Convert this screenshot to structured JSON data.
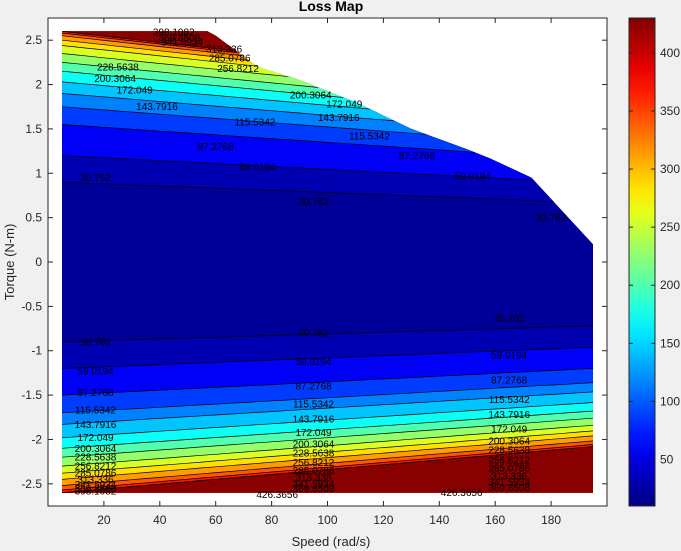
{
  "chart_data": {
    "type": "contourf",
    "title": "Loss Map",
    "xlabel": "Speed (rad/s)",
    "ylabel": "Torque (N-m)",
    "xlim": [
      0,
      200
    ],
    "ylim": [
      -2.75,
      2.75
    ],
    "x_ticks": [
      20,
      40,
      60,
      80,
      100,
      120,
      140,
      160,
      180
    ],
    "y_ticks": [
      -2.5,
      -2,
      -1.5,
      -1,
      -0.5,
      0,
      0.5,
      1,
      1.5,
      2,
      2.5
    ],
    "y_tick_labels": [
      "-2.5",
      "-2",
      "-1.5",
      "-1",
      "-0.5",
      "0",
      "0.5",
      "1",
      "1.5",
      "2",
      "2.5"
    ],
    "data_x_range": [
      5,
      195
    ],
    "data_y_range": [
      -2.6,
      2.6
    ],
    "max_torque_boundary": [
      [
        5,
        2.6
      ],
      [
        57,
        2.6
      ],
      [
        60,
        2.55
      ],
      [
        75,
        2.2
      ],
      [
        90,
        2.05
      ],
      [
        110,
        1.8
      ],
      [
        130,
        1.5
      ],
      [
        150,
        1.27
      ],
      [
        158,
        1.17
      ],
      [
        173,
        0.95
      ],
      [
        195,
        0.2
      ]
    ],
    "contour_levels": [
      30.762,
      59.0194,
      87.2768,
      115.5342,
      143.7916,
      172.049,
      200.3064,
      228.5638,
      256.8212,
      285.0786,
      313.336,
      341.5934,
      369.8508,
      398.1082,
      426.3656
    ],
    "contour_label_texts": [
      "30.762",
      "59.0194",
      "87.2768",
      "115.5342",
      "143.7916",
      "172.049",
      "200.3064",
      "228.5638",
      "256.8212",
      "285.0786",
      "313.336",
      "341.5934",
      "369.8508",
      "398.1082",
      "426.3656"
    ],
    "loss_profile": {
      "description_levels_at_torque": [
        [
          0,
          22
        ],
        [
          0.9,
          30.762
        ],
        [
          1.2,
          59.0194
        ],
        [
          1.55,
          87.2768
        ],
        [
          1.75,
          115.5342
        ],
        [
          1.9,
          143.7916
        ],
        [
          2.03,
          172.049
        ],
        [
          2.15,
          200.3064
        ],
        [
          2.25,
          228.5638
        ],
        [
          2.35,
          256.8212
        ],
        [
          2.44,
          285.0786
        ],
        [
          2.5,
          313.336
        ],
        [
          2.55,
          341.5934
        ],
        [
          2.58,
          369.8508
        ],
        [
          2.6,
          398.1082
        ]
      ],
      "negative_side": [
        [
          0,
          22
        ],
        [
          -0.9,
          30.762
        ],
        [
          -1.2,
          59.0194
        ],
        [
          -1.5,
          87.2768
        ],
        [
          -1.7,
          115.5342
        ],
        [
          -1.83,
          143.7916
        ],
        [
          -1.98,
          172.049
        ],
        [
          -2.1,
          200.3064
        ],
        [
          -2.2,
          228.5638
        ],
        [
          -2.3,
          256.8212
        ],
        [
          -2.38,
          285.0786
        ],
        [
          -2.45,
          313.336
        ],
        [
          -2.52,
          341.5934
        ],
        [
          -2.57,
          369.8508
        ],
        [
          -2.6,
          426.3656
        ]
      ]
    },
    "colorbar": {
      "colormap": "jet",
      "clim": [
        10,
        430
      ],
      "ticks": [
        50,
        100,
        150,
        200,
        250,
        300,
        350,
        400
      ],
      "tick_labels": [
        "50",
        "100",
        "150",
        "200",
        "250",
        "300",
        "350",
        "400"
      ]
    },
    "contour_labels": [
      {
        "text": "30.762",
        "x": 17,
        "y": 0.95
      },
      {
        "text": "30.762",
        "x": 95,
        "y": 0.68
      },
      {
        "text": "30.762",
        "x": 180,
        "y": 0.5
      },
      {
        "text": "59.0194",
        "x": 75,
        "y": 1.07
      },
      {
        "text": "59.0194",
        "x": 152,
        "y": 0.97
      },
      {
        "text": "87.2768",
        "x": 60,
        "y": 1.3
      },
      {
        "text": "87.2768",
        "x": 132,
        "y": 1.2
      },
      {
        "text": "115.5342",
        "x": 74,
        "y": 1.58
      },
      {
        "text": "115.5342",
        "x": 115,
        "y": 1.42
      },
      {
        "text": "143.7916",
        "x": 39,
        "y": 1.75
      },
      {
        "text": "143.7916",
        "x": 104,
        "y": 1.63
      },
      {
        "text": "172.049",
        "x": 31,
        "y": 1.94
      },
      {
        "text": "172.049",
        "x": 106,
        "y": 1.78
      },
      {
        "text": "200.3064",
        "x": 24,
        "y": 2.07
      },
      {
        "text": "200.3064",
        "x": 94,
        "y": 1.88
      },
      {
        "text": "228.5638",
        "x": 25,
        "y": 2.2
      },
      {
        "text": "256.8212",
        "x": 68,
        "y": 2.18
      },
      {
        "text": "285.0786",
        "x": 65,
        "y": 2.3
      },
      {
        "text": "313.336",
        "x": 63,
        "y": 2.4
      },
      {
        "text": "341.5934",
        "x": 48,
        "y": 2.48
      },
      {
        "text": "369.8508",
        "x": 47,
        "y": 2.53
      },
      {
        "text": "398.1082",
        "x": 45,
        "y": 2.59
      },
      {
        "text": "30.762",
        "x": 17,
        "y": -0.9
      },
      {
        "text": "30.762",
        "x": 95,
        "y": -0.8
      },
      {
        "text": "30.762",
        "x": 165,
        "y": -0.63
      },
      {
        "text": "59.0194",
        "x": 17,
        "y": -1.23
      },
      {
        "text": "59.0194",
        "x": 95,
        "y": -1.12
      },
      {
        "text": "59.0194",
        "x": 165,
        "y": -1.05
      },
      {
        "text": "87.2768",
        "x": 17,
        "y": -1.47
      },
      {
        "text": "87.2768",
        "x": 95,
        "y": -1.4
      },
      {
        "text": "87.2768",
        "x": 165,
        "y": -1.33
      },
      {
        "text": "115.5342",
        "x": 17,
        "y": -1.67
      },
      {
        "text": "115.5342",
        "x": 95,
        "y": -1.6
      },
      {
        "text": "115.5342",
        "x": 165,
        "y": -1.55
      },
      {
        "text": "143.7916",
        "x": 17,
        "y": -1.83
      },
      {
        "text": "143.7916",
        "x": 95,
        "y": -1.77
      },
      {
        "text": "143.7916",
        "x": 165,
        "y": -1.72
      },
      {
        "text": "172.049",
        "x": 17,
        "y": -1.98
      },
      {
        "text": "172.049",
        "x": 95,
        "y": -1.92
      },
      {
        "text": "172.049",
        "x": 165,
        "y": -1.88
      },
      {
        "text": "200.3064",
        "x": 17,
        "y": -2.1
      },
      {
        "text": "200.3064",
        "x": 95,
        "y": -2.05
      },
      {
        "text": "200.3064",
        "x": 165,
        "y": -2.02
      },
      {
        "text": "228.5638",
        "x": 17,
        "y": -2.2
      },
      {
        "text": "228.5638",
        "x": 95,
        "y": -2.15
      },
      {
        "text": "228.5638",
        "x": 165,
        "y": -2.12
      },
      {
        "text": "256.8212",
        "x": 17,
        "y": -2.3
      },
      {
        "text": "256.8212",
        "x": 95,
        "y": -2.26
      },
      {
        "text": "256.8212",
        "x": 165,
        "y": -2.23
      },
      {
        "text": "285.0786",
        "x": 17,
        "y": -2.38
      },
      {
        "text": "285.0786",
        "x": 95,
        "y": -2.35
      },
      {
        "text": "285.0786",
        "x": 165,
        "y": -2.32
      },
      {
        "text": "313.336",
        "x": 17,
        "y": -2.45
      },
      {
        "text": "313.336",
        "x": 95,
        "y": -2.43
      },
      {
        "text": "313.336",
        "x": 165,
        "y": -2.41
      },
      {
        "text": "341.5934",
        "x": 17,
        "y": -2.51
      },
      {
        "text": "341.5934",
        "x": 95,
        "y": -2.5
      },
      {
        "text": "341.5934",
        "x": 165,
        "y": -2.48
      },
      {
        "text": "369.8508",
        "x": 17,
        "y": -2.55
      },
      {
        "text": "369.8508",
        "x": 95,
        "y": -2.55
      },
      {
        "text": "369.8508",
        "x": 165,
        "y": -2.54
      },
      {
        "text": "398.1082",
        "x": 17,
        "y": -2.58
      },
      {
        "text": "426.3656",
        "x": 82,
        "y": -2.62
      },
      {
        "text": "426.3656",
        "x": 148,
        "y": -2.6
      }
    ]
  }
}
